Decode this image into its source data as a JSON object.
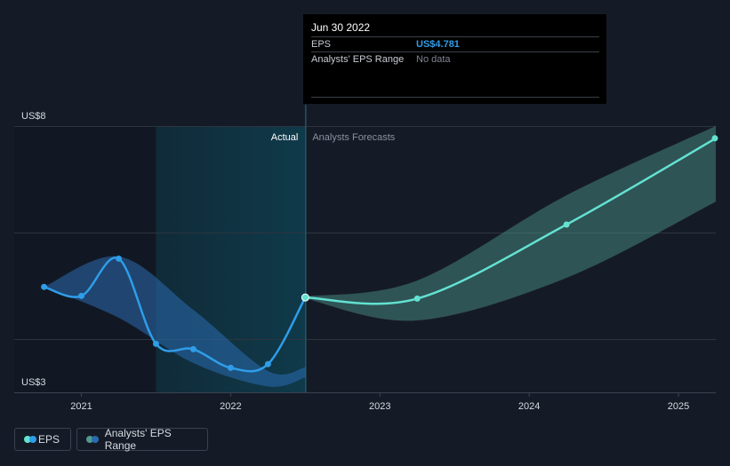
{
  "tooltip": {
    "date": "Jun 30 2022",
    "rows": [
      {
        "label": "EPS",
        "value": "US$4.781",
        "value_color": "#2f9de8"
      },
      {
        "label": "Analysts' EPS Range",
        "value": "No data",
        "value_color": "#7d8594"
      }
    ]
  },
  "legend": {
    "eps_label": "EPS",
    "range_label": "Analysts' EPS Range"
  },
  "colors": {
    "background": "#151b26",
    "eps_actual": "#2f9de8",
    "eps_forecast": "#63e2d2",
    "range_past": "#2a6bb0",
    "range_forecast": "#4f9b90",
    "highlight": "#0f3a4a",
    "grid": "#2d3440",
    "text": "#d7dbe2",
    "muted": "#8a919e"
  },
  "chart_data": {
    "type": "line",
    "y_tick_labels": [
      {
        "value": 8,
        "label": "US$8"
      },
      {
        "value": 3,
        "label": "US$3"
      }
    ],
    "ylim": [
      3,
      8
    ],
    "x_ticks": [
      {
        "value": 2021.0,
        "label": "2021"
      },
      {
        "value": 2022.0,
        "label": "2022"
      },
      {
        "value": 2023.0,
        "label": "2023"
      },
      {
        "value": 2024.0,
        "label": "2024"
      },
      {
        "value": 2025.0,
        "label": "2025"
      }
    ],
    "xlim": [
      2020.55,
      2025.25
    ],
    "divider_x": 2022.5,
    "highlight_range": [
      2021.5,
      2022.5
    ],
    "section_labels": {
      "actual": "Actual",
      "forecast": "Analysts Forecasts"
    },
    "series": [
      {
        "name": "EPS",
        "kind": "actual",
        "points": [
          {
            "x": 2020.75,
            "y": 4.98
          },
          {
            "x": 2021.0,
            "y": 4.81
          },
          {
            "x": 2021.25,
            "y": 5.51
          },
          {
            "x": 2021.5,
            "y": 3.91
          },
          {
            "x": 2021.75,
            "y": 3.81
          },
          {
            "x": 2022.0,
            "y": 3.46
          },
          {
            "x": 2022.25,
            "y": 3.53
          },
          {
            "x": 2022.5,
            "y": 4.781
          }
        ]
      },
      {
        "name": "EPS",
        "kind": "forecast",
        "points": [
          {
            "x": 2022.5,
            "y": 4.781
          },
          {
            "x": 2023.25,
            "y": 4.76
          },
          {
            "x": 2024.25,
            "y": 6.15
          },
          {
            "x": 2025.25,
            "y": 7.77
          }
        ]
      }
    ],
    "ranges": [
      {
        "kind": "past",
        "x": [
          2020.75,
          2021.25,
          2021.75,
          2022.25,
          2022.5
        ],
        "upper": [
          4.98,
          5.55,
          4.55,
          3.4,
          3.47
        ],
        "lower": [
          4.98,
          4.4,
          3.55,
          3.11,
          3.28
        ]
      },
      {
        "kind": "forecast",
        "x": [
          2022.5,
          2023.25,
          2024.25,
          2025.25
        ],
        "upper": [
          4.8,
          5.1,
          6.7,
          8.0
        ],
        "lower": [
          4.76,
          4.35,
          5.15,
          6.58
        ]
      }
    ],
    "tooltip_x": 2022.5
  }
}
